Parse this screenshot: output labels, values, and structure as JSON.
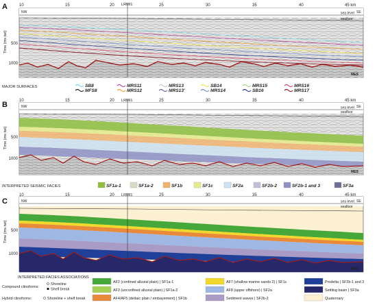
{
  "panels": [
    {
      "label": "A",
      "left": "NW",
      "right": "SE",
      "sea_level": "sea level",
      "seafloor": "seafloor",
      "mes": "MES"
    },
    {
      "label": "B",
      "left": "NW",
      "right": "SE",
      "sea_level": "sea level",
      "seafloor": "seafloor",
      "mes": "MES"
    },
    {
      "label": "C",
      "left": "NW",
      "right": "SE",
      "sea_level": "sea level",
      "seafloor": "seafloor",
      "mes": "MES"
    }
  ],
  "x_ticks": [
    "10",
    "15",
    "20",
    "25",
    "30",
    "35",
    "40",
    "45 km"
  ],
  "y_ticks": [
    "500",
    "1000"
  ],
  "y_axis_label": "Time (ms twt)",
  "well": "LRMI1",
  "legend_surfaces": {
    "title": "MAJOR SURFACES",
    "items": [
      {
        "label": "SB8",
        "color": "#7fd3e6"
      },
      {
        "label": "MFS8",
        "color": "#222222"
      },
      {
        "label": "MRS11",
        "color": "#b84a9c"
      },
      {
        "label": "MRS12",
        "color": "#e9a23b"
      },
      {
        "label": "MRS13",
        "color": "#c9c9c9"
      },
      {
        "label": "MRS13'",
        "color": "#7a5aa8"
      },
      {
        "label": "SB14",
        "color": "#f1e34a"
      },
      {
        "label": "MRS14",
        "color": "#6f8fc9"
      },
      {
        "label": "MRS15",
        "color": "#a7d08c"
      },
      {
        "label": "SB16",
        "color": "#2d3c8f"
      },
      {
        "label": "MRS16",
        "color": "#d74a6e"
      },
      {
        "label": "MRS17",
        "color": "#8a1e2a"
      }
    ]
  },
  "legend_facies": {
    "title": "INTERPRETED SEISMIC FACIES",
    "items": [
      {
        "label": "SF1a-1",
        "color": "#8fbf3f"
      },
      {
        "label": "SF1a-2",
        "color": "#d9dcc4"
      },
      {
        "label": "SF1b",
        "color": "#f2b36b"
      },
      {
        "label": "SF1c",
        "color": "#e6ec8a"
      },
      {
        "label": "SF2a",
        "color": "#cfe3f2"
      },
      {
        "label": "SF2b-2",
        "color": "#c3bfd9"
      },
      {
        "label": "SF2b-1 and 3",
        "color": "#8e93c4"
      },
      {
        "label": "SF3a",
        "color": "#6b6f99"
      }
    ]
  },
  "legend_assoc": {
    "title": "INTERPRETED FACIES ASSOCIATIONS",
    "compound_label": "Compound clinoforms:",
    "hybrid_label": "Hybrid clinoforms:",
    "shoreline": "Shoreline",
    "shelf_break": "Shelf break",
    "shoreline_shelf": "Shoreline + shelf break",
    "items": [
      {
        "label": "AF2 (confined alluvial plain) | SF1a-1",
        "color": "#46a83a"
      },
      {
        "label": "AF3 (unconfined alluvial plain) | SF1a-2",
        "color": "#a6cf55"
      },
      {
        "label": "AF4/AF5 (deltaic plain / embayement) | SF1b",
        "color": "#e88a3a"
      },
      {
        "label": "AF7 (shallow marine sands 2) | SF1c",
        "color": "#f1d82a"
      },
      {
        "label": "AF8 (upper offshore) | SF2a",
        "color": "#9fb8e3"
      },
      {
        "label": "Sediment waves | SF2b-2",
        "color": "#a89bc6"
      },
      {
        "label": "Prodelta | SF2b-1 and 3",
        "color": "#1f3f99"
      },
      {
        "label": "Settling basin | SF3a",
        "color": "#27286a"
      },
      {
        "label": "Quaternary",
        "color": "#fbf0d2"
      }
    ]
  }
}
